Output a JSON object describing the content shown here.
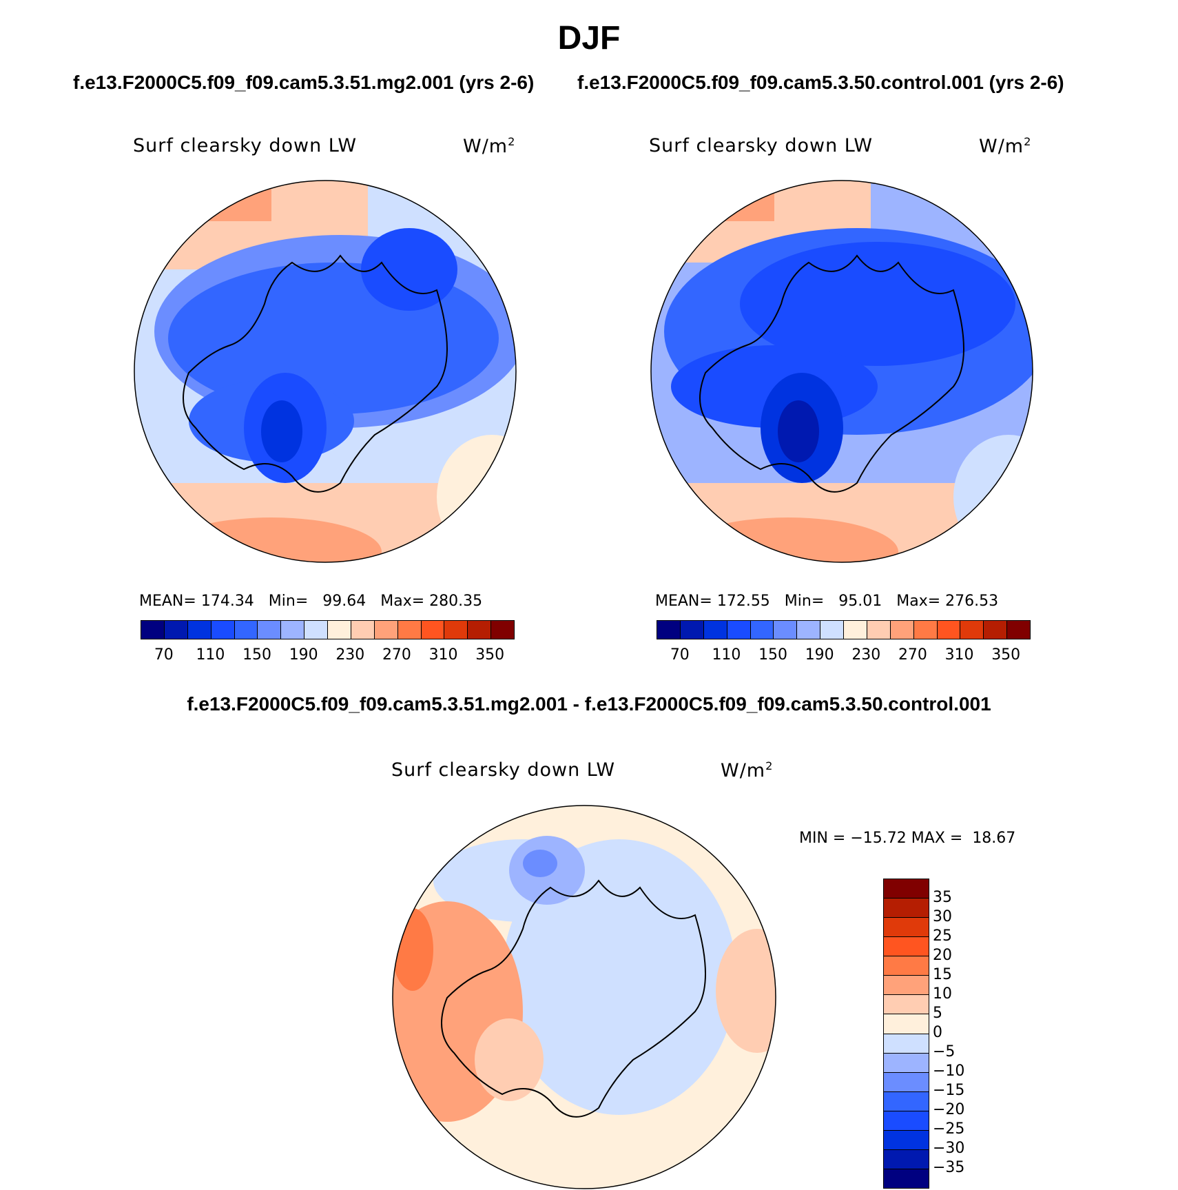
{
  "title": "DJF",
  "run_titles": [
    "f.e13.F2000C5.f09_f09.cam5.3.51.mg2.001 (yrs 2-6)",
    "f.e13.F2000C5.f09_f09.cam5.3.50.control.001 (yrs 2-6)"
  ],
  "diff_title": "f.e13.F2000C5.f09_f09.cam5.3.51.mg2.001 - f.e13.F2000C5.f09_f09.cam5.3.50.control.001",
  "variable_label": "Surf clearsky down LW",
  "units_base": "W/m",
  "units_exp": "2",
  "colors": {
    "abs_scale": [
      "#000080",
      "#0019b0",
      "#0033e0",
      "#1a4cff",
      "#3366ff",
      "#6b8dff",
      "#9db4ff",
      "#cfe0ff",
      "#fff0dc",
      "#ffcdb2",
      "#ffa27a",
      "#ff7a45",
      "#ff5520",
      "#e03a0a",
      "#b51e02",
      "#800000"
    ],
    "diff_scale": [
      "#000080",
      "#0019b0",
      "#0033e0",
      "#1a4cff",
      "#3366ff",
      "#6b8dff",
      "#9db4ff",
      "#cfe0ff",
      "#fff0dc",
      "#ffcdb2",
      "#ffa27a",
      "#ff7a45",
      "#ff5520",
      "#e03a0a",
      "#b51e02",
      "#800000"
    ]
  },
  "chart_data": [
    {
      "type": "heatmap",
      "projection": "north-polar-stereographic",
      "run": "f.e13.F2000C5.f09_f09.cam5.3.51.mg2.001 (yrs 2-6)",
      "field": "Surf clearsky down LW",
      "units": "W/m2",
      "stats": {
        "mean_label": "MEAN=",
        "mean": "174.34",
        "min_label": "Min=",
        "min": "99.64",
        "max_label": "Max=",
        "max": "280.35"
      },
      "colorbar_ticks": [
        "70",
        "110",
        "150",
        "190",
        "230",
        "270",
        "310",
        "350"
      ],
      "contour_levels": [
        70,
        90,
        110,
        130,
        150,
        170,
        190,
        210,
        230,
        250,
        270,
        290,
        310,
        330,
        350
      ]
    },
    {
      "type": "heatmap",
      "projection": "north-polar-stereographic",
      "run": "f.e13.F2000C5.f09_f09.cam5.3.50.control.001 (yrs 2-6)",
      "field": "Surf clearsky down LW",
      "units": "W/m2",
      "stats": {
        "mean_label": "MEAN=",
        "mean": "172.55",
        "min_label": "Min=",
        "min": "95.01",
        "max_label": "Max=",
        "max": "276.53"
      },
      "colorbar_ticks": [
        "70",
        "110",
        "150",
        "190",
        "230",
        "270",
        "310",
        "350"
      ],
      "contour_levels": [
        70,
        90,
        110,
        130,
        150,
        170,
        190,
        210,
        230,
        250,
        270,
        290,
        310,
        330,
        350
      ]
    },
    {
      "type": "heatmap",
      "projection": "north-polar-stereographic",
      "run": "difference",
      "field": "Surf clearsky down LW",
      "units": "W/m2",
      "stats": {
        "min_label": "MIN =",
        "min": "−15.72",
        "max_label": "MAX =",
        "max": "18.67"
      },
      "colorbar_ticks": [
        "35",
        "30",
        "25",
        "20",
        "15",
        "10",
        "5",
        "0",
        "−5",
        "−10",
        "−15",
        "−20",
        "−25",
        "−30",
        "−35"
      ],
      "contour_levels": [
        -35,
        -30,
        -25,
        -20,
        -15,
        -10,
        -5,
        0,
        5,
        10,
        15,
        20,
        25,
        30,
        35
      ]
    }
  ]
}
